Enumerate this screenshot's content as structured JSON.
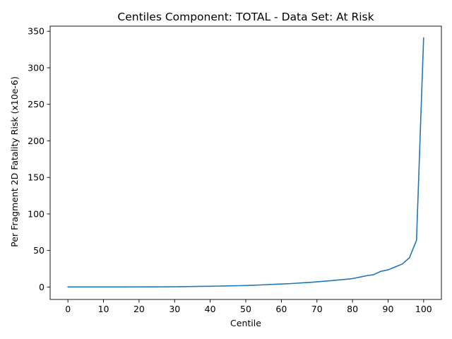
{
  "chart_data": {
    "type": "line",
    "title": "Centiles Component: TOTAL - Data Set: At Risk",
    "xlabel": "Centile",
    "ylabel": "Per Fragment 2D Fatality Risk (x10e-6)",
    "xlim": [
      -5,
      105
    ],
    "ylim": [
      -17,
      357
    ],
    "xticks": [
      0,
      10,
      20,
      30,
      40,
      50,
      60,
      70,
      80,
      90,
      100
    ],
    "yticks": [
      0,
      50,
      100,
      150,
      200,
      250,
      300,
      350
    ],
    "grid": false,
    "series": [
      {
        "color": "#1f77b4",
        "x": [
          0,
          2,
          4,
          6,
          8,
          10,
          12,
          14,
          16,
          18,
          20,
          22,
          24,
          26,
          28,
          30,
          32,
          34,
          36,
          38,
          40,
          42,
          44,
          46,
          48,
          50,
          52,
          54,
          56,
          58,
          60,
          62,
          64,
          66,
          68,
          70,
          72,
          74,
          76,
          78,
          80,
          82,
          84,
          86,
          88,
          90,
          92,
          94,
          96,
          98,
          100
        ],
        "y": [
          0.05,
          0.05,
          0.06,
          0.07,
          0.08,
          0.09,
          0.1,
          0.11,
          0.12,
          0.14,
          0.16,
          0.19,
          0.23,
          0.28,
          0.34,
          0.4,
          0.5,
          0.65,
          0.8,
          0.95,
          1.1,
          1.25,
          1.45,
          1.65,
          1.85,
          2.05,
          2.4,
          2.8,
          3.3,
          3.7,
          4.1,
          4.5,
          5.1,
          5.8,
          6.4,
          7.1,
          7.9,
          8.7,
          9.6,
          10.5,
          11.5,
          13.5,
          15.5,
          17.0,
          21.5,
          23.5,
          27.5,
          31.5,
          40.0,
          64.0,
          341.0
        ]
      }
    ]
  }
}
